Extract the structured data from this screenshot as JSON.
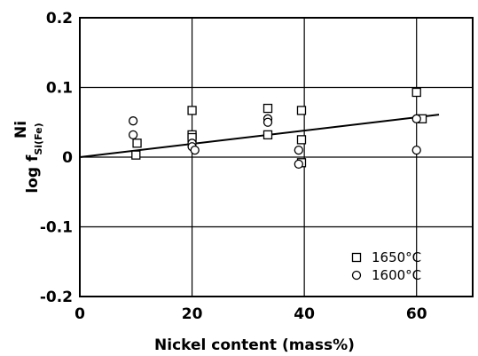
{
  "chart_data": {
    "type": "scatter",
    "xlabel": "Nickel content (mass%)",
    "ylabel_main": "log f",
    "ylabel_sup": "Ni",
    "ylabel_sub": "Si(Fe)",
    "xlim": [
      0,
      70
    ],
    "ylim": [
      -0.2,
      0.2
    ],
    "x_ticks": [
      0,
      20,
      40,
      60
    ],
    "x_tick_labels": [
      "0",
      "20",
      "40",
      "60"
    ],
    "y_ticks": [
      0.2,
      0.1,
      0,
      -0.1,
      -0.2
    ],
    "y_tick_labels": [
      "0.2",
      "0.1",
      "0",
      "-0.1",
      "-0.2"
    ],
    "grid": true,
    "legend_position": "bottom-right",
    "series": [
      {
        "name": "1650°C",
        "marker": "square",
        "points": [
          {
            "x": 10,
            "y": 0.003
          },
          {
            "x": 10.2,
            "y": 0.02
          },
          {
            "x": 20,
            "y": 0.067
          },
          {
            "x": 20,
            "y": 0.032
          },
          {
            "x": 20,
            "y": 0.028
          },
          {
            "x": 33.5,
            "y": 0.07
          },
          {
            "x": 33.5,
            "y": 0.032
          },
          {
            "x": 39.5,
            "y": 0.067
          },
          {
            "x": 39.5,
            "y": 0.025
          },
          {
            "x": 39.5,
            "y": -0.008
          },
          {
            "x": 60,
            "y": 0.093
          },
          {
            "x": 61,
            "y": 0.055
          }
        ]
      },
      {
        "name": "1600°C",
        "marker": "circle",
        "points": [
          {
            "x": 9.5,
            "y": 0.052
          },
          {
            "x": 9.5,
            "y": 0.032
          },
          {
            "x": 20,
            "y": 0.02
          },
          {
            "x": 20,
            "y": 0.015
          },
          {
            "x": 20.5,
            "y": 0.01
          },
          {
            "x": 33.5,
            "y": 0.055
          },
          {
            "x": 33.5,
            "y": 0.05
          },
          {
            "x": 39,
            "y": 0.01
          },
          {
            "x": 39,
            "y": -0.01
          },
          {
            "x": 60,
            "y": 0.055
          },
          {
            "x": 60,
            "y": 0.01
          }
        ]
      }
    ],
    "fit_line": {
      "x": [
        0,
        64
      ],
      "y": [
        0,
        0.061
      ]
    }
  }
}
